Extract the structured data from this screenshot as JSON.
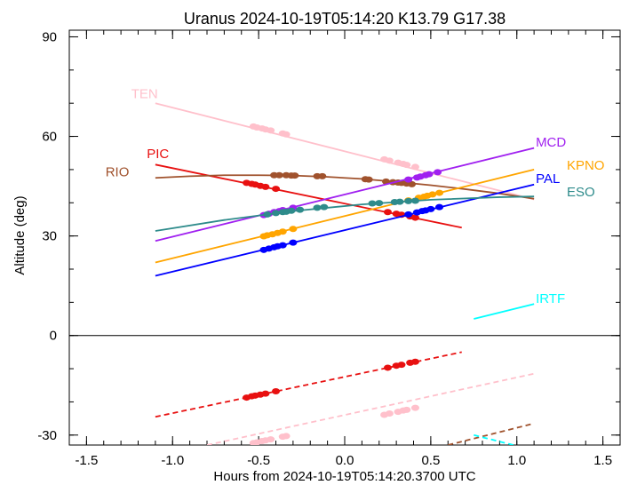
{
  "chart_data": {
    "type": "line",
    "title": "Uranus 2024-10-19T05:14:20  K13.79  G17.38",
    "xlabel": "Hours from 2024-10-19T05:14:20.3700 UTC",
    "ylabel": "Altitude (deg)",
    "xlim": [
      -1.6,
      1.6
    ],
    "ylim": [
      -33,
      92
    ],
    "xticks": [
      -1.5,
      -1.0,
      -0.5,
      0.0,
      0.5,
      1.0,
      1.5
    ],
    "xtick_labels": [
      "-1.5",
      "-1.0",
      "-0.5",
      "0.0",
      "0.5",
      "1.0",
      "1.5"
    ],
    "yticks": [
      -30,
      0,
      30,
      60,
      90
    ],
    "ytick_labels": [
      "-30",
      "0",
      "30",
      "60",
      "90"
    ],
    "zero_line": 0,
    "grid": false,
    "series": [
      {
        "name": "TEN",
        "color": "#ffc0cb",
        "label_at": [
          -1.24,
          71.5
        ],
        "x": [
          -1.1,
          1.1
        ],
        "y": [
          70.0,
          41.0
        ],
        "below_x": [
          -0.8,
          1.1
        ],
        "below_y": [
          -33.0,
          -11.5
        ],
        "points": [
          [
            -0.53,
            63.0
          ],
          [
            -0.51,
            62.7
          ],
          [
            -0.48,
            62.4
          ],
          [
            -0.46,
            62.1
          ],
          [
            -0.43,
            61.8
          ],
          [
            -0.36,
            60.9
          ],
          [
            -0.34,
            60.6
          ],
          [
            0.23,
            53.1
          ],
          [
            0.26,
            52.7
          ],
          [
            0.31,
            52.1
          ],
          [
            0.34,
            51.7
          ],
          [
            0.36,
            51.4
          ],
          [
            0.41,
            50.8
          ],
          [
            -0.53,
            -32.4
          ],
          [
            -0.51,
            -32.2
          ],
          [
            -0.48,
            -31.8
          ],
          [
            -0.46,
            -31.6
          ],
          [
            -0.43,
            -31.3
          ],
          [
            -0.36,
            -30.5
          ],
          [
            -0.34,
            -30.3
          ],
          [
            0.23,
            -23.9
          ],
          [
            0.26,
            -23.5
          ],
          [
            0.31,
            -23.0
          ],
          [
            0.34,
            -22.6
          ],
          [
            0.36,
            -22.4
          ],
          [
            0.41,
            -21.8
          ]
        ]
      },
      {
        "name": "PIC",
        "color": "#e81010",
        "label_at": [
          -1.15,
          53.5
        ],
        "x": [
          -1.1,
          0.68
        ],
        "y": [
          51.5,
          32.5
        ],
        "below_x": [
          -1.1,
          0.68
        ],
        "below_y": [
          -24.5,
          -5.0
        ],
        "points": [
          [
            -0.57,
            46.0
          ],
          [
            -0.54,
            45.7
          ],
          [
            -0.52,
            45.5
          ],
          [
            -0.49,
            45.1
          ],
          [
            -0.46,
            44.8
          ],
          [
            -0.4,
            44.2
          ],
          [
            0.25,
            37.2
          ],
          [
            0.3,
            36.7
          ],
          [
            0.33,
            36.4
          ],
          [
            0.38,
            35.9
          ],
          [
            0.41,
            35.5
          ],
          [
            -0.57,
            -18.7
          ],
          [
            -0.54,
            -18.3
          ],
          [
            -0.52,
            -18.1
          ],
          [
            -0.49,
            -17.8
          ],
          [
            -0.46,
            -17.5
          ],
          [
            -0.4,
            -16.8
          ],
          [
            0.25,
            -9.7
          ],
          [
            0.3,
            -9.1
          ],
          [
            0.33,
            -8.8
          ],
          [
            0.38,
            -8.2
          ],
          [
            0.41,
            -7.9
          ]
        ]
      },
      {
        "name": "RIO",
        "color": "#a0522d",
        "label_at": [
          -1.39,
          48.0
        ],
        "x": [
          -1.1,
          -0.9,
          -0.7,
          -0.5,
          -0.3,
          -0.1,
          0.1,
          0.3,
          0.5,
          0.7,
          0.9,
          1.1
        ],
        "y": [
          47.5,
          48.0,
          48.3,
          48.3,
          48.2,
          47.8,
          47.2,
          46.3,
          45.3,
          44.1,
          42.8,
          41.2
        ],
        "below_x": [
          0.6,
          1.1
        ],
        "below_y": [
          -33.0,
          -26.5
        ],
        "points": [
          [
            -0.41,
            48.3
          ],
          [
            -0.38,
            48.3
          ],
          [
            -0.34,
            48.3
          ],
          [
            -0.31,
            48.2
          ],
          [
            -0.29,
            48.2
          ],
          [
            -0.16,
            48.0
          ],
          [
            -0.13,
            48.0
          ],
          [
            0.12,
            47.1
          ],
          [
            0.14,
            47.0
          ],
          [
            0.24,
            46.4
          ],
          [
            0.28,
            46.2
          ],
          [
            0.31,
            46.1
          ],
          [
            0.33,
            46.0
          ],
          [
            0.36,
            45.8
          ],
          [
            0.39,
            45.6
          ]
        ]
      },
      {
        "name": "MCD",
        "color": "#a020f0",
        "label_at": [
          1.11,
          57.0
        ],
        "x": [
          -1.1,
          1.1
        ],
        "y": [
          28.5,
          56.5
        ],
        "points": [
          [
            -0.47,
            36.3
          ],
          [
            -0.44,
            36.7
          ],
          [
            -0.41,
            37.2
          ],
          [
            -0.38,
            37.5
          ],
          [
            -0.36,
            37.8
          ],
          [
            -0.3,
            38.5
          ],
          [
            0.37,
            47.0
          ],
          [
            0.42,
            47.6
          ],
          [
            0.44,
            47.9
          ],
          [
            0.47,
            48.3
          ],
          [
            0.49,
            48.6
          ],
          [
            0.54,
            49.2
          ]
        ]
      },
      {
        "name": "KPNO",
        "color": "#ffa500",
        "label_at": [
          1.29,
          50.0
        ],
        "x": [
          -1.1,
          1.1
        ],
        "y": [
          22.0,
          50.0
        ],
        "points": [
          [
            -0.47,
            29.9
          ],
          [
            -0.45,
            30.2
          ],
          [
            -0.42,
            30.5
          ],
          [
            -0.39,
            30.9
          ],
          [
            -0.36,
            31.3
          ],
          [
            -0.3,
            32.1
          ],
          [
            0.37,
            40.7
          ],
          [
            0.43,
            41.5
          ],
          [
            0.46,
            41.8
          ],
          [
            0.48,
            42.1
          ],
          [
            0.51,
            42.5
          ],
          [
            0.55,
            43.0
          ]
        ]
      },
      {
        "name": "PAL",
        "color": "#0000ff",
        "label_at": [
          1.11,
          46.0
        ],
        "x": [
          -1.1,
          1.1
        ],
        "y": [
          18.0,
          45.5
        ],
        "points": [
          [
            -0.47,
            25.8
          ],
          [
            -0.44,
            26.2
          ],
          [
            -0.41,
            26.6
          ],
          [
            -0.39,
            26.9
          ],
          [
            -0.36,
            27.2
          ],
          [
            -0.3,
            28.0
          ],
          [
            0.37,
            36.5
          ],
          [
            0.42,
            37.1
          ],
          [
            0.45,
            37.5
          ],
          [
            0.47,
            37.7
          ],
          [
            0.5,
            38.1
          ],
          [
            0.55,
            38.7
          ]
        ]
      },
      {
        "name": "ESO",
        "color": "#2e8b8b",
        "label_at": [
          1.29,
          42.0
        ],
        "x": [
          -1.1,
          -0.7,
          -0.3,
          0.1,
          0.5,
          0.9,
          1.1
        ],
        "y": [
          31.5,
          34.8,
          37.5,
          39.5,
          40.9,
          41.7,
          41.9
        ],
        "points": [
          [
            -0.45,
            36.5
          ],
          [
            -0.4,
            36.9
          ],
          [
            -0.36,
            37.2
          ],
          [
            -0.34,
            37.3
          ],
          [
            -0.31,
            37.6
          ],
          [
            -0.26,
            37.9
          ],
          [
            -0.16,
            38.5
          ],
          [
            -0.12,
            38.7
          ],
          [
            0.16,
            39.8
          ],
          [
            0.2,
            39.9
          ],
          [
            0.29,
            40.2
          ],
          [
            0.32,
            40.3
          ],
          [
            0.37,
            40.5
          ],
          [
            0.41,
            40.6
          ]
        ]
      },
      {
        "name": "IRTF",
        "color": "#00ffff",
        "label_at": [
          1.11,
          9.8
        ],
        "x": [
          0.75,
          1.1
        ],
        "y": [
          5.0,
          9.5
        ],
        "below_x": [
          0.75,
          0.98
        ],
        "below_y": [
          -30.0,
          -33.0
        ],
        "points": []
      }
    ]
  }
}
